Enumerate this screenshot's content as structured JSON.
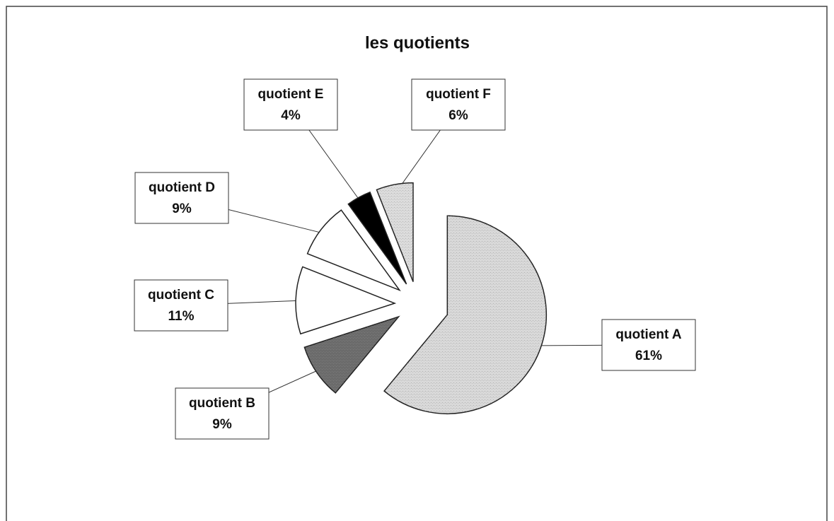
{
  "chart_data": {
    "type": "pie",
    "title": "les quotients",
    "categories": [
      "quotient A",
      "quotient B",
      "quotient C",
      "quotient D",
      "quotient E",
      "quotient F"
    ],
    "values": [
      61,
      9,
      11,
      9,
      4,
      6
    ],
    "value_labels": [
      "61%",
      "9%",
      "11%",
      "9%",
      "4%",
      "6%"
    ],
    "colors": [
      "#d9d9d9",
      "#6b6b6b",
      "#ffffff",
      "#ffffff",
      "#000000",
      "#dcdcdc"
    ]
  }
}
